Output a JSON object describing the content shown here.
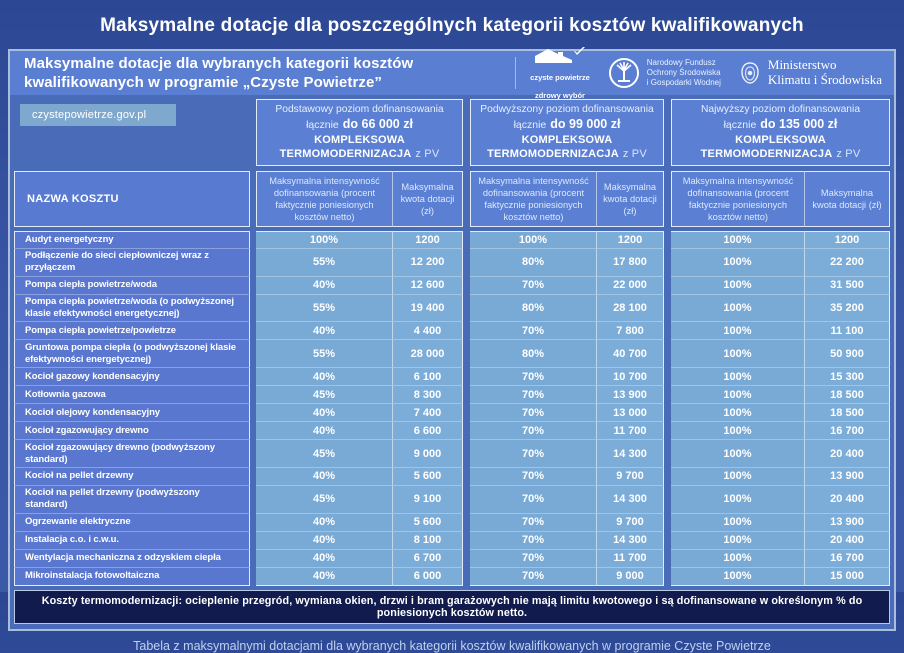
{
  "page": {
    "title": "Maksymalne dotacje dla poszczególnych kategorii kosztów kwalifikowanych",
    "caption": "Tabela z maksymalnymi dotacjami dla wybranych kategorii kosztów kwalifikowanych w programie Czyste Powietrze"
  },
  "panel": {
    "heading": "Maksymalne dotacje dla wybranych kategorii kosztów\nkwalifikowanych w programie „Czyste Powietrze”",
    "site_badge": "czystepowietrze.gov.pl",
    "note": "Koszty termomodernizacji: ocieplenie przegród, wymiana okien, drzwi i bram garażowych nie mają limitu kwotowego i są dofinansowane w określonym % do poniesionych kosztów netto.",
    "logos": {
      "czyste_powietrze": {
        "line1": "czyste powietrze",
        "line2": "zdrowy wybór"
      },
      "nfosigw": {
        "line1": "Narodowy Fundusz",
        "line2": "Ochrony Środowiska",
        "line3": "i Gospodarki Wodnej"
      },
      "ministerstwo": {
        "line1": "Ministerstwo",
        "line2": "Klimatu i Środowiska"
      }
    }
  },
  "table": {
    "name_header": "NAZWA KOSZTU",
    "sub_headers": {
      "intensity": "Maksymalna intensywność dofinansowania (procent faktycznie poniesionych kosztów netto)",
      "amount": "Maksymalna kwota dotacji (zł)"
    },
    "groups": [
      {
        "line1": "Podstawowy poziom dofinansowania",
        "line2_prefix": "łącznie",
        "line2_amount": "do 66 000 zł",
        "line3_main": "KOMPLEKSOWA TERMOMODERNIZACJA",
        "line3_suffix": "z PV"
      },
      {
        "line1": "Podwyższony poziom dofinansowania",
        "line2_prefix": "łącznie",
        "line2_amount": "do 99 000 zł",
        "line3_main": "KOMPLEKSOWA TERMOMODERNIZACJA",
        "line3_suffix": "z PV"
      },
      {
        "line1": "Najwyższy poziom dofinansowania",
        "line2_prefix": "łącznie",
        "line2_amount": "do 135 000 zł",
        "line3_main": "KOMPLEKSOWA TERMOMODERNIZACJA",
        "line3_suffix": "z PV"
      }
    ],
    "rows": [
      {
        "name": "Audyt energetyczny",
        "values": [
          [
            "100%",
            "1200"
          ],
          [
            "100%",
            "1200"
          ],
          [
            "100%",
            "1200"
          ]
        ]
      },
      {
        "name": "Podłączenie do sieci ciepłowniczej wraz z przyłączem",
        "values": [
          [
            "55%",
            "12 200"
          ],
          [
            "80%",
            "17 800"
          ],
          [
            "100%",
            "22 200"
          ]
        ]
      },
      {
        "name": "Pompa ciepła powietrze/woda",
        "values": [
          [
            "40%",
            "12 600"
          ],
          [
            "70%",
            "22 000"
          ],
          [
            "100%",
            "31 500"
          ]
        ]
      },
      {
        "name": "Pompa ciepła powietrze/woda (o podwyższonej klasie efektywności energetycznej)",
        "values": [
          [
            "55%",
            "19 400"
          ],
          [
            "80%",
            "28 100"
          ],
          [
            "100%",
            "35 200"
          ]
        ]
      },
      {
        "name": "Pompa ciepła powietrze/powietrze",
        "values": [
          [
            "40%",
            "4 400"
          ],
          [
            "70%",
            "7 800"
          ],
          [
            "100%",
            "11 100"
          ]
        ]
      },
      {
        "name": "Gruntowa pompa ciepła (o podwyższonej klasie efektywności energetycznej)",
        "values": [
          [
            "55%",
            "28 000"
          ],
          [
            "80%",
            "40 700"
          ],
          [
            "100%",
            "50 900"
          ]
        ]
      },
      {
        "name": "Kocioł gazowy kondensacyjny",
        "values": [
          [
            "40%",
            "6 100"
          ],
          [
            "70%",
            "10 700"
          ],
          [
            "100%",
            "15 300"
          ]
        ]
      },
      {
        "name": "Kotłownia gazowa",
        "values": [
          [
            "45%",
            "8 300"
          ],
          [
            "70%",
            "13 900"
          ],
          [
            "100%",
            "18 500"
          ]
        ]
      },
      {
        "name": "Kocioł olejowy kondensacyjny",
        "values": [
          [
            "40%",
            "7 400"
          ],
          [
            "70%",
            "13 000"
          ],
          [
            "100%",
            "18 500"
          ]
        ]
      },
      {
        "name": "Kocioł zgazowujący drewno",
        "values": [
          [
            "40%",
            "6 600"
          ],
          [
            "70%",
            "11 700"
          ],
          [
            "100%",
            "16 700"
          ]
        ]
      },
      {
        "name": "Kocioł zgazowujący drewno (podwyższony standard)",
        "values": [
          [
            "45%",
            "9 000"
          ],
          [
            "70%",
            "14 300"
          ],
          [
            "100%",
            "20 400"
          ]
        ]
      },
      {
        "name": "Kocioł na pellet drzewny",
        "values": [
          [
            "40%",
            "5 600"
          ],
          [
            "70%",
            "9 700"
          ],
          [
            "100%",
            "13 900"
          ]
        ]
      },
      {
        "name": "Kocioł na pellet drzewny (podwyższony standard)",
        "values": [
          [
            "45%",
            "9 100"
          ],
          [
            "70%",
            "14 300"
          ],
          [
            "100%",
            "20 400"
          ]
        ]
      },
      {
        "name": "Ogrzewanie elektryczne",
        "values": [
          [
            "40%",
            "5 600"
          ],
          [
            "70%",
            "9 700"
          ],
          [
            "100%",
            "13 900"
          ]
        ]
      },
      {
        "name": "Instalacja c.o. i c.w.u.",
        "values": [
          [
            "40%",
            "8 100"
          ],
          [
            "70%",
            "14 300"
          ],
          [
            "100%",
            "20 400"
          ]
        ]
      },
      {
        "name": "Wentylacja mechaniczna z odzyskiem ciepła",
        "values": [
          [
            "40%",
            "6 700"
          ],
          [
            "70%",
            "11 700"
          ],
          [
            "100%",
            "16 700"
          ]
        ]
      },
      {
        "name": "Mikroinstalacja fotowoltaiczna",
        "values": [
          [
            "40%",
            "6 000"
          ],
          [
            "70%",
            "9 000"
          ],
          [
            "100%",
            "15 000"
          ]
        ]
      }
    ]
  },
  "colors": {
    "page_bg": "#33519f",
    "panel_bg": "#4a6bb8",
    "header_band_bg": "#5a7ed2",
    "group_header_bg": "#5b80d3",
    "name_cell_bg": "#5a77d0",
    "value_cell_bg": "#79aad6",
    "badge_bg": "#7fa8ce",
    "note_bg": "#111b4d",
    "text": "#ffffff"
  }
}
